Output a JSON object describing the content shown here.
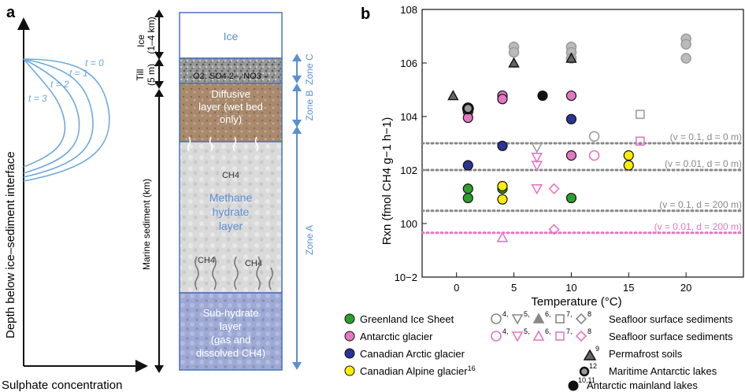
{
  "panel_a": {
    "label": "a",
    "x_axis_label": "Sulphate concentration",
    "y_axis_label": "Depth below ice–sediment interface",
    "curve_labels": [
      "t = 0",
      "t = 1",
      "t = 2",
      "t = 3"
    ],
    "depth_labels": {
      "ice": "Ice",
      "ice_thickness": "(1–4 km)",
      "till": "Till",
      "till_thickness": "(5 m)",
      "marine": "Marine sediment (km)"
    },
    "column": {
      "ice": "Ice",
      "till_species": "O2, SO4 2–, NO3 –",
      "diffusive_l1": "Diffusive",
      "diffusive_l2": "layer (wet bed",
      "diffusive_l3": "only)",
      "methane_l1": "Methane",
      "methane_l2": "hydrate",
      "methane_l3": "layer",
      "ch4": "CH4",
      "subhydrate_l1": "Sub-hydrate",
      "subhydrate_l2": "layer",
      "subhydrate_l3": "(gas and",
      "subhydrate_l4": "dissolved CH4)"
    },
    "zones": [
      "Zone C",
      "Zone B",
      "Zone A"
    ]
  },
  "chart_data": {
    "type": "scatter",
    "panel_label": "b",
    "xlabel": "Temperature (°C)",
    "ylabel": "Rxn (fmol CH4 g−1 h−1)",
    "xlim": [
      -3,
      25
    ],
    "ylim": [
      0.01,
      100000000
    ],
    "y_scale": "log",
    "x_ticks": [
      0,
      5,
      10,
      15,
      20
    ],
    "y_ticks": [
      "10−2",
      "100",
      "102",
      "104",
      "106",
      "108"
    ],
    "reference_lines": [
      {
        "label": "(v = 0.1, d = 0 m)",
        "y": 1000,
        "color": "#888888"
      },
      {
        "label": "(v = 0.01, d = 0 m)",
        "y": 100,
        "color": "#888888"
      },
      {
        "label": "(v = 0.1, d = 200 m)",
        "y": 3,
        "color": "#888888"
      },
      {
        "label": "(v = 0.01, d = 200 m)",
        "y": 0.45,
        "color": "#e377c2"
      }
    ],
    "series": [
      {
        "name": "Greenland Ice Sheet",
        "marker": "circle",
        "color": "#2ca02c",
        "points": [
          [
            1,
            20
          ],
          [
            1,
            9
          ],
          [
            10,
            9
          ],
          [
            4,
            20
          ]
        ]
      },
      {
        "name": "Antarctic glacier",
        "marker": "circle",
        "color": "#e377c2",
        "points": [
          [
            1,
            15000
          ],
          [
            1,
            9000
          ],
          [
            4,
            60000
          ],
          [
            4,
            45000
          ],
          [
            10,
            60000
          ],
          [
            10,
            350
          ]
        ]
      },
      {
        "name": "Canadian Arctic glacier",
        "marker": "circle",
        "color": "#283593",
        "points": [
          [
            1,
            150
          ],
          [
            4,
            800
          ],
          [
            10,
            8000
          ]
        ]
      },
      {
        "name": "Canadian Alpine glacier",
        "marker": "circle",
        "color": "#ffee00",
        "points": [
          [
            4,
            25
          ],
          [
            4,
            8
          ],
          [
            15,
            350
          ],
          [
            15,
            150
          ]
        ]
      },
      {
        "name": "Seafloor surface sediments (grey)",
        "marker": "mixed",
        "color": "#9e9e9e",
        "points": [
          [
            5,
            4000000
          ],
          [
            5,
            2500000
          ],
          [
            10,
            4000000
          ],
          [
            10,
            2500000
          ],
          [
            10,
            1500000
          ],
          [
            20,
            8000000
          ],
          [
            20,
            5000000
          ],
          [
            20,
            1500000
          ],
          [
            12,
            1800
          ],
          [
            7,
            700
          ],
          [
            16,
            12000
          ]
        ]
      },
      {
        "name": "Seafloor surface sediments (pink)",
        "marker": "mixed",
        "color": "#e377c2",
        "points": [
          [
            12,
            350
          ],
          [
            7,
            300
          ],
          [
            7,
            150
          ],
          [
            7,
            20
          ],
          [
            8.5,
            20
          ],
          [
            4,
            0.3
          ],
          [
            8.5,
            0.6
          ],
          [
            16,
            1200
          ]
        ]
      },
      {
        "name": "Permafrost soils",
        "marker": "triangle-filled",
        "color": "#666666",
        "points": [
          [
            -0.3,
            60000
          ],
          [
            5,
            1000000
          ],
          [
            10,
            1500000
          ]
        ]
      },
      {
        "name": "Maritime Antarctic lakes",
        "marker": "circle-thick",
        "color": "#333333",
        "points": [
          [
            1,
            20000
          ]
        ]
      },
      {
        "name": "Antarctic mainland lakes",
        "marker": "circle",
        "color": "#111111",
        "points": [
          [
            7.5,
            60000
          ]
        ]
      }
    ]
  },
  "legend_left": [
    {
      "label": "Greenland Ice Sheet",
      "color": "#2ca02c"
    },
    {
      "label": "Antarctic glacier",
      "color": "#e377c2"
    },
    {
      "label": "Canadian Arctic glacier",
      "color": "#283593"
    },
    {
      "label": "Canadian Alpine glacier",
      "sup": "16",
      "color": "#ffee00"
    }
  ],
  "legend_right": [
    {
      "label": "Seafloor surface sediments",
      "refs": [
        "4",
        "5",
        "6",
        "7",
        "8"
      ],
      "color": "#888888"
    },
    {
      "label": "Seafloor surface sediments",
      "refs": [
        "4",
        "5",
        "6",
        "7",
        "8"
      ],
      "color": "#e377c2"
    },
    {
      "label": "Permafrost soils",
      "sup": "9"
    },
    {
      "label": "Maritime Antarctic lakes",
      "sup": "12"
    },
    {
      "label": "Antarctic mainland lakes",
      "sup": "10,11"
    }
  ]
}
